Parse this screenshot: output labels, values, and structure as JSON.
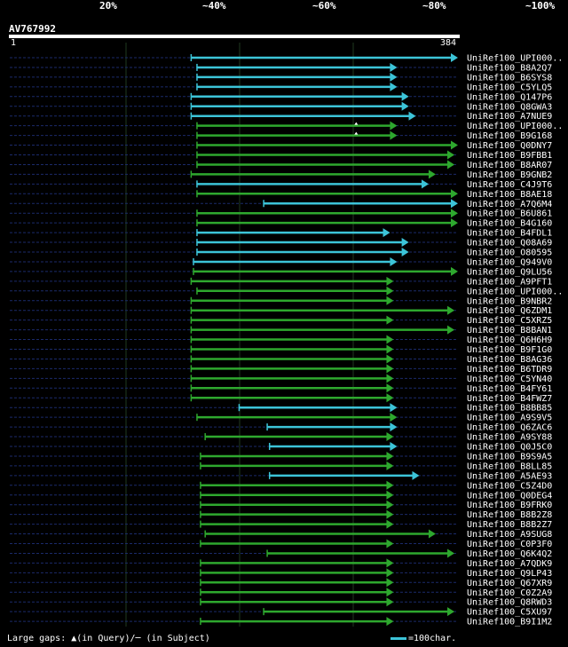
{
  "legend": {
    "labels": [
      "20%",
      "~40%",
      "~60%",
      "~80%",
      "~100%"
    ],
    "bands": [
      "#e8193c",
      "#e8781e",
      "#9c2a9c",
      "#16a31c",
      "#1cbcc0"
    ]
  },
  "query": {
    "id": "AV767992",
    "start": "1",
    "end": "384",
    "length": 384
  },
  "colors": {
    "cyan": "#3cc4d8",
    "green": "#2ea82e",
    "backbone": "#1b2a6a"
  },
  "hits": [
    {
      "name": "UniRef100_UPI000..",
      "start": 156,
      "end": 384,
      "color": "cyan"
    },
    {
      "name": "UniRef100_B8A2Q7",
      "start": 161,
      "end": 332,
      "color": "cyan"
    },
    {
      "name": "UniRef100_B6SYS8",
      "start": 161,
      "end": 332,
      "color": "cyan"
    },
    {
      "name": "UniRef100_C5YLQ5",
      "start": 161,
      "end": 332,
      "color": "cyan"
    },
    {
      "name": "UniRef100_Q147P6",
      "start": 156,
      "end": 342,
      "color": "cyan"
    },
    {
      "name": "UniRef100_Q8GWA3",
      "start": 156,
      "end": 342,
      "color": "cyan"
    },
    {
      "name": "UniRef100_A7NUE9",
      "start": 156,
      "end": 348,
      "color": "cyan"
    },
    {
      "name": "UniRef100_UPI000..",
      "start": 161,
      "end": 332,
      "color": "green",
      "gap": 297
    },
    {
      "name": "UniRef100_B9G168",
      "start": 161,
      "end": 332,
      "color": "green",
      "gap": 297
    },
    {
      "name": "UniRef100_Q0DNY7",
      "start": 161,
      "end": 384,
      "color": "green"
    },
    {
      "name": "UniRef100_B9FBB1",
      "start": 161,
      "end": 381,
      "color": "green"
    },
    {
      "name": "UniRef100_B8AR07",
      "start": 161,
      "end": 381,
      "color": "green"
    },
    {
      "name": "UniRef100_B9GNB2",
      "start": 156,
      "end": 365,
      "color": "green"
    },
    {
      "name": "UniRef100_C4J9T6",
      "start": 161,
      "end": 359,
      "color": "cyan"
    },
    {
      "name": "UniRef100_B8AE18",
      "start": 161,
      "end": 384,
      "color": "green"
    },
    {
      "name": "UniRef100_A7Q6M4",
      "start": 218,
      "end": 384,
      "color": "cyan"
    },
    {
      "name": "UniRef100_B6U861",
      "start": 161,
      "end": 384,
      "color": "green"
    },
    {
      "name": "UniRef100_B4G160",
      "start": 161,
      "end": 384,
      "color": "green"
    },
    {
      "name": "UniRef100_B4FDL1",
      "start": 161,
      "end": 326,
      "color": "cyan"
    },
    {
      "name": "UniRef100_Q08A69",
      "start": 161,
      "end": 342,
      "color": "cyan"
    },
    {
      "name": "UniRef100_O80595",
      "start": 161,
      "end": 342,
      "color": "cyan"
    },
    {
      "name": "UniRef100_Q949V0",
      "start": 158,
      "end": 332,
      "color": "cyan"
    },
    {
      "name": "UniRef100_Q9LU56",
      "start": 158,
      "end": 384,
      "color": "green"
    },
    {
      "name": "UniRef100_A9PFT1",
      "start": 156,
      "end": 329,
      "color": "green"
    },
    {
      "name": "UniRef100_UPI000..",
      "start": 161,
      "end": 329,
      "color": "green"
    },
    {
      "name": "UniRef100_B9NBR2",
      "start": 156,
      "end": 329,
      "color": "green"
    },
    {
      "name": "UniRef100_Q6ZDM1",
      "start": 156,
      "end": 381,
      "color": "green"
    },
    {
      "name": "UniRef100_C5XRZ5",
      "start": 156,
      "end": 329,
      "color": "green"
    },
    {
      "name": "UniRef100_B8BAN1",
      "start": 156,
      "end": 381,
      "color": "green"
    },
    {
      "name": "UniRef100_Q6H6H9",
      "start": 156,
      "end": 329,
      "color": "green"
    },
    {
      "name": "UniRef100_B9F1G0",
      "start": 156,
      "end": 329,
      "color": "green"
    },
    {
      "name": "UniRef100_B8AG36",
      "start": 156,
      "end": 329,
      "color": "green"
    },
    {
      "name": "UniRef100_B6TDR9",
      "start": 156,
      "end": 329,
      "color": "green"
    },
    {
      "name": "UniRef100_C5YN40",
      "start": 156,
      "end": 329,
      "color": "green"
    },
    {
      "name": "UniRef100_B4FY61",
      "start": 156,
      "end": 329,
      "color": "green"
    },
    {
      "name": "UniRef100_B4FWZ7",
      "start": 156,
      "end": 329,
      "color": "green"
    },
    {
      "name": "UniRef100_B8BB85",
      "start": 197,
      "end": 332,
      "color": "cyan"
    },
    {
      "name": "UniRef100_A9S9V5",
      "start": 161,
      "end": 332,
      "color": "green"
    },
    {
      "name": "UniRef100_Q6ZAC6",
      "start": 221,
      "end": 332,
      "color": "cyan"
    },
    {
      "name": "UniRef100_A9SY88",
      "start": 168,
      "end": 329,
      "color": "green"
    },
    {
      "name": "UniRef100_Q0J5C0",
      "start": 223,
      "end": 332,
      "color": "cyan"
    },
    {
      "name": "UniRef100_B9S9A5",
      "start": 164,
      "end": 329,
      "color": "green"
    },
    {
      "name": "UniRef100_B8LL85",
      "start": 164,
      "end": 329,
      "color": "green"
    },
    {
      "name": "UniRef100_A5AE93",
      "start": 223,
      "end": 351,
      "color": "cyan"
    },
    {
      "name": "UniRef100_C5Z4D0",
      "start": 164,
      "end": 329,
      "color": "green"
    },
    {
      "name": "UniRef100_Q0DEG4",
      "start": 164,
      "end": 329,
      "color": "green"
    },
    {
      "name": "UniRef100_B9FRK0",
      "start": 164,
      "end": 329,
      "color": "green"
    },
    {
      "name": "UniRef100_B8B2Z8",
      "start": 164,
      "end": 329,
      "color": "green"
    },
    {
      "name": "UniRef100_B8B2Z7",
      "start": 164,
      "end": 329,
      "color": "green"
    },
    {
      "name": "UniRef100_A9SUG8",
      "start": 168,
      "end": 365,
      "color": "green"
    },
    {
      "name": "UniRef100_C0P3F0",
      "start": 164,
      "end": 329,
      "color": "green"
    },
    {
      "name": "UniRef100_Q6K4Q2",
      "start": 221,
      "end": 381,
      "color": "green"
    },
    {
      "name": "UniRef100_A7QDK9",
      "start": 164,
      "end": 329,
      "color": "green"
    },
    {
      "name": "UniRef100_Q9LP43",
      "start": 164,
      "end": 329,
      "color": "green"
    },
    {
      "name": "UniRef100_Q67XR9",
      "start": 164,
      "end": 329,
      "color": "green"
    },
    {
      "name": "UniRef100_C0Z2A9",
      "start": 164,
      "end": 329,
      "color": "green"
    },
    {
      "name": "UniRef100_Q8RWD3",
      "start": 164,
      "end": 329,
      "color": "green"
    },
    {
      "name": "UniRef100_C5XU97",
      "start": 218,
      "end": 381,
      "color": "green"
    },
    {
      "name": "UniRef100_B9I1M2",
      "start": 164,
      "end": 329,
      "color": "green"
    }
  ],
  "footer": {
    "gaps_text": "Large gaps: ▲(in Query)/─ (in Subject)",
    "scale_text": "=100char."
  }
}
